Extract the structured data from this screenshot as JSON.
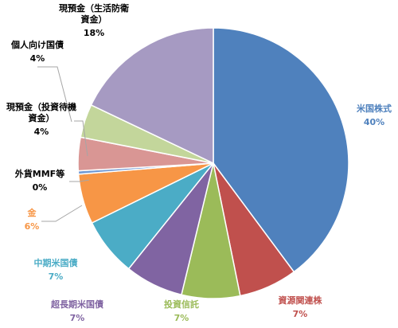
{
  "chart_data": {
    "type": "pie",
    "start_angle_deg": 0,
    "direction": "clockwise",
    "slices": [
      {
        "name": "米国株式",
        "value": 40,
        "label": "40%",
        "color": "#4f81bd",
        "label_color": "#4f81bd"
      },
      {
        "name": "資源関連株",
        "value": 7,
        "label": "7%",
        "color": "#c0504d",
        "label_color": "#c0504d"
      },
      {
        "name": "投資信託",
        "value": 7,
        "label": "7%",
        "color": "#9bbb59",
        "label_color": "#9bbb59"
      },
      {
        "name": "超長期米国債",
        "value": 7,
        "label": "7%",
        "color": "#8064a2",
        "label_color": "#8064a2"
      },
      {
        "name": "中期米国債",
        "value": 7,
        "label": "7%",
        "color": "#4bacc6",
        "label_color": "#4bacc6"
      },
      {
        "name": "金",
        "value": 6,
        "label": "6%",
        "color": "#f79646",
        "label_color": "#f79646"
      },
      {
        "name": "外貨MMF等",
        "value": 0.4,
        "label": "0%",
        "color": "#6f98d4",
        "label_color": "#000000"
      },
      {
        "name": "現預金（投資待機資金）",
        "value": 4,
        "label": "4%",
        "color": "#d99694",
        "label_color": "#000000"
      },
      {
        "name": "個人向け国債",
        "value": 4,
        "label": "4%",
        "color": "#c3d69b",
        "label_color": "#000000"
      },
      {
        "name": "現預金（生活防衛資金）",
        "value": 18,
        "label": "18%",
        "color": "#a69ac2",
        "label_color": "#000000"
      }
    ],
    "legend": "none"
  }
}
